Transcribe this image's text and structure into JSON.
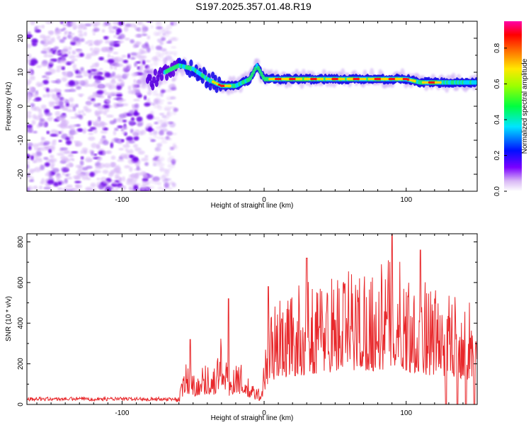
{
  "title": "S197.2025.357.01.48.R19",
  "chart_data": [
    {
      "type": "heatmap",
      "xlabel": "Height of straight line (km)",
      "ylabel": "Frequency (Hz)",
      "xlim": [
        -167,
        150
      ],
      "ylim": [
        -25,
        25
      ],
      "x_ticks": [
        -100,
        0,
        100
      ],
      "y_ticks": [
        -20,
        -10,
        0,
        10,
        20
      ],
      "colorbar": {
        "label": "Normalized spectral amplitude",
        "range": [
          0,
          0.95
        ],
        "ticks": [
          0,
          0.2,
          0.4,
          0.6,
          0.8
        ]
      },
      "dominant_frequency_track": {
        "x": [
          -80,
          -70,
          -60,
          -50,
          -40,
          -30,
          -20,
          -10,
          -5,
          0,
          20,
          50,
          80,
          100,
          110,
          120,
          130,
          140,
          150
        ],
        "y": [
          7,
          10,
          12,
          11,
          8,
          6,
          6,
          8,
          12,
          8,
          8,
          8,
          8,
          8,
          7,
          7,
          7,
          7,
          7
        ]
      },
      "noise_region_x": [
        -167,
        -70
      ]
    },
    {
      "type": "line",
      "xlabel": "Height of straight line (km)",
      "ylabel": "SNR (10 * v/v)",
      "xlim": [
        -167,
        150
      ],
      "ylim": [
        0,
        840
      ],
      "x_ticks": [
        -100,
        0,
        100
      ],
      "y_ticks": [
        0,
        200,
        400,
        600,
        800
      ],
      "color": "#e8282b",
      "envelope": {
        "x": [
          -167,
          -70,
          -60,
          -55,
          -50,
          -40,
          -35,
          -30,
          -25,
          -20,
          -10,
          -2,
          0,
          5,
          10,
          20,
          30,
          40,
          50,
          60,
          70,
          80,
          90,
          100,
          110,
          120,
          125,
          130,
          135,
          140,
          145,
          150
        ],
        "y": [
          20,
          25,
          40,
          180,
          130,
          170,
          150,
          290,
          120,
          200,
          90,
          60,
          200,
          400,
          420,
          460,
          480,
          520,
          530,
          550,
          560,
          540,
          620,
          540,
          500,
          470,
          450,
          470,
          450,
          420,
          400,
          410
        ]
      },
      "peaks": [
        {
          "x": -52,
          "y": 320
        },
        {
          "x": -25,
          "y": 520
        },
        {
          "x": 3,
          "y": 580
        },
        {
          "x": 30,
          "y": 720
        },
        {
          "x": 90,
          "y": 840
        },
        {
          "x": 110,
          "y": 760
        }
      ],
      "dropouts_x": [
        128,
        136,
        142,
        148
      ]
    }
  ]
}
